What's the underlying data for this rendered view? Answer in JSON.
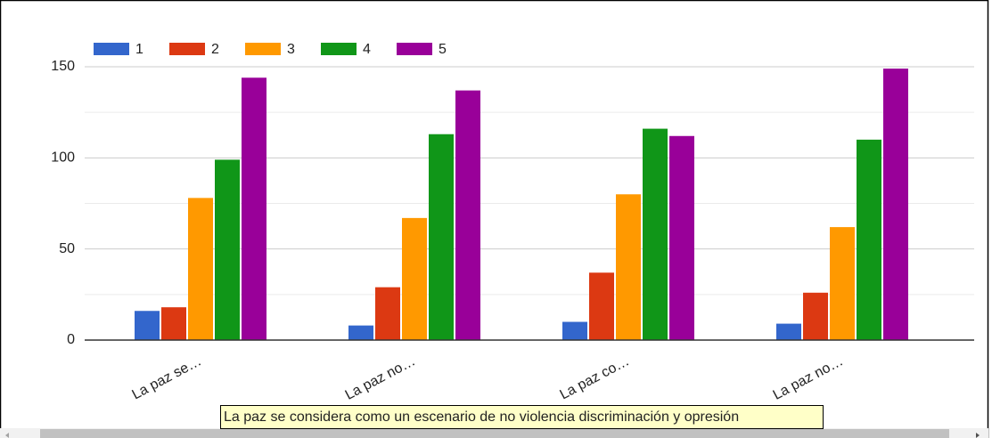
{
  "chart_data": {
    "type": "bar",
    "categories": [
      "La paz se…",
      "La paz no…",
      "La paz co…",
      "La paz no…"
    ],
    "series": [
      {
        "name": "1",
        "color": "#3366cc",
        "values": [
          16,
          8,
          10,
          9
        ]
      },
      {
        "name": "2",
        "color": "#dc3912",
        "values": [
          18,
          29,
          37,
          26
        ]
      },
      {
        "name": "3",
        "color": "#ff9900",
        "values": [
          78,
          67,
          80,
          62
        ]
      },
      {
        "name": "4",
        "color": "#109618",
        "values": [
          99,
          113,
          116,
          110
        ]
      },
      {
        "name": "5",
        "color": "#990099",
        "values": [
          144,
          137,
          112,
          149
        ]
      }
    ],
    "ylim": [
      0,
      150
    ],
    "yticks": [
      0,
      50,
      100,
      150
    ],
    "minor_gridlines": [
      25,
      75,
      125
    ],
    "grid": true,
    "legend": "top",
    "tooltip": "La paz se considera como un escenario de no violencia discriminación y opresión"
  }
}
